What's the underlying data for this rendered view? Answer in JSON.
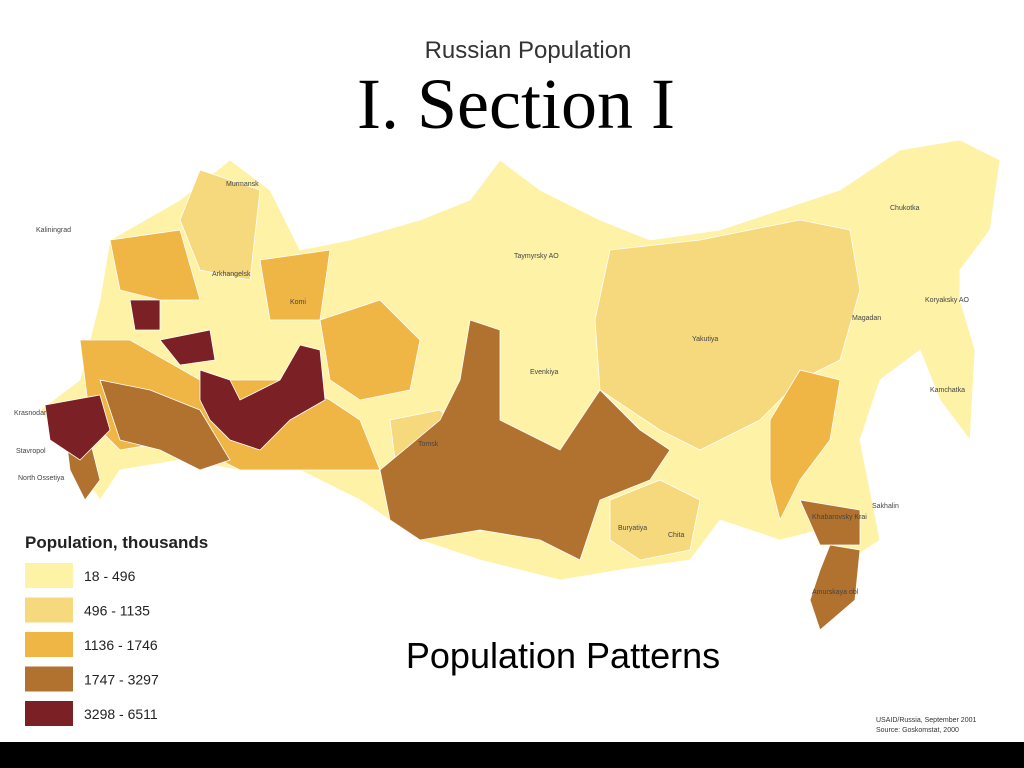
{
  "slide": {
    "map_title": "Russian Population",
    "heading": "I. Section I",
    "subtitle": "Population Patterns",
    "legend": {
      "title": "Population, thousands",
      "entries": [
        {
          "label": "18 - 496",
          "color": "#fdf2a6"
        },
        {
          "label": "496 - 1135",
          "color": "#f6d97c"
        },
        {
          "label": "1136 - 1746",
          "color": "#efb646"
        },
        {
          "label": "1747 - 3297",
          "color": "#b1722f"
        },
        {
          "label": "3298 - 6511",
          "color": "#7b2024"
        }
      ]
    },
    "region_labels": [
      "Kaliningrad",
      "Murmansk",
      "Arkhangelsk",
      "Komi",
      "Taymyrsky AO",
      "Evenkiya",
      "Yakutiya",
      "Magadan",
      "Chukotka",
      "Koryaksky AO",
      "Kamchatka",
      "Tomsk",
      "Sakhalin",
      "Khabarovsky Krai",
      "Amurskaya obl",
      "Krasnodar",
      "Stavropol",
      "North Ossetiya",
      "Buryatiya",
      "Chita"
    ],
    "source": [
      "USAID/Russia, September 2001",
      "Source: Goskomstat, 2000"
    ]
  }
}
